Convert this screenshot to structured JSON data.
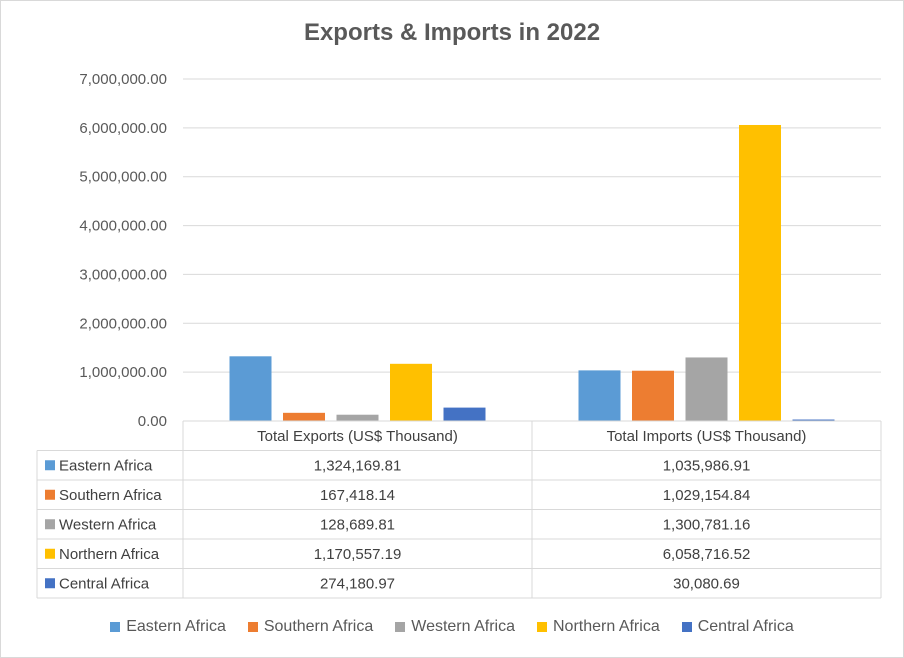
{
  "chart_data": {
    "type": "bar",
    "title": "Exports & Imports in 2022",
    "categories": [
      "Total Exports (US$ Thousand)",
      "Total Imports (US$ Thousand)"
    ],
    "series": [
      {
        "name": "Eastern Africa",
        "color": "#5B9BD5",
        "values": [
          1324169.81,
          1035986.91
        ],
        "labels": [
          "1,324,169.81",
          "1,035,986.91"
        ]
      },
      {
        "name": "Southern Africa",
        "color": "#ED7D31",
        "values": [
          167418.14,
          1029154.84
        ],
        "labels": [
          "167,418.14",
          "1,029,154.84"
        ]
      },
      {
        "name": "Western Africa",
        "color": "#A5A5A5",
        "values": [
          128689.81,
          1300781.16
        ],
        "labels": [
          "128,689.81",
          "1,300,781.16"
        ]
      },
      {
        "name": "Northern Africa",
        "color": "#FFC000",
        "values": [
          1170557.19,
          6058716.52
        ],
        "labels": [
          "1,170,557.19",
          "6,058,716.52"
        ]
      },
      {
        "name": "Central Africa",
        "color": "#4472C4",
        "values": [
          274180.97,
          30080.69
        ],
        "labels": [
          "274,180.97",
          "30,080.69"
        ]
      }
    ],
    "ylim": [
      0,
      7000000
    ],
    "yticks": [
      "0.00",
      "1,000,000.00",
      "2,000,000.00",
      "3,000,000.00",
      "4,000,000.00",
      "5,000,000.00",
      "6,000,000.00",
      "7,000,000.00"
    ],
    "grid": true,
    "legend_position": "bottom",
    "data_table": true
  }
}
